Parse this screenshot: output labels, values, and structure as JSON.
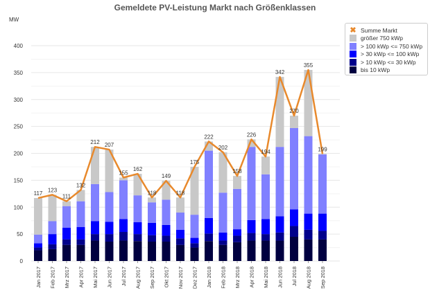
{
  "chart_data": {
    "type": "bar",
    "stacked": true,
    "title": "Gemeldete PV-Leistung Markt nach Größenklassen",
    "ylabel": "MW",
    "ylim": [
      0,
      400
    ],
    "yticks": [
      0,
      50,
      100,
      150,
      200,
      250,
      300,
      350,
      400
    ],
    "grid": true,
    "legend_position": "right",
    "categories": [
      "Jan 2017",
      "Feb 2017",
      "Mrz 2017",
      "Apr 2017",
      "Mai 2017",
      "Jun 2017",
      "Jul 2017",
      "Aug 2017",
      "Sep 2017",
      "Okt 2017",
      "Nov 2017",
      "Dez 2017",
      "Jan 2018",
      "Feb 2018",
      "Mrz 2018",
      "Apr 2018",
      "Mai 2018",
      "Jun 2018",
      "Jul 2018",
      "Aug 2018",
      "Sep 2018"
    ],
    "series": [
      {
        "name": "bis 10 kWp",
        "color": "#000040",
        "values": [
          20,
          22,
          30,
          30,
          38,
          36,
          38,
          37,
          36,
          36,
          30,
          25,
          37,
          30,
          35,
          38,
          38,
          38,
          45,
          40,
          40
        ]
      },
      {
        "name": "> 10 kWp <= 30 kWp",
        "color": "#00008b",
        "values": [
          5,
          9,
          10,
          10,
          12,
          14,
          16,
          13,
          12,
          11,
          12,
          8,
          14,
          8,
          12,
          14,
          12,
          15,
          20,
          18,
          16
        ]
      },
      {
        "name": "> 30 kWp <= 100 kWp",
        "color": "#0000ff",
        "values": [
          8,
          19,
          22,
          23,
          24,
          23,
          24,
          22,
          23,
          20,
          16,
          10,
          29,
          15,
          12,
          24,
          28,
          30,
          31,
          30,
          32
        ]
      },
      {
        "name": "> 100 kWp <= 750 kWp",
        "color": "#8080ff",
        "values": [
          16,
          24,
          40,
          48,
          69,
          55,
          72,
          50,
          38,
          47,
          32,
          43,
          125,
          74,
          75,
          136,
          83,
          129,
          151,
          144,
          110
        ]
      },
      {
        "name": "größer 750 kWp",
        "color": "#c8c8c8",
        "values": [
          68,
          49,
          9,
          21,
          69,
          79,
          5,
          40,
          9,
          35,
          28,
          89,
          17,
          75,
          24,
          14,
          33,
          130,
          23,
          123,
          1
        ]
      }
    ],
    "line": {
      "name": "Summe Markt",
      "color": "#e8892c",
      "values": [
        117,
        123,
        111,
        132,
        212,
        207,
        155,
        162,
        118,
        149,
        118,
        175,
        222,
        202,
        158,
        226,
        194,
        342,
        270,
        355,
        199
      ]
    }
  }
}
